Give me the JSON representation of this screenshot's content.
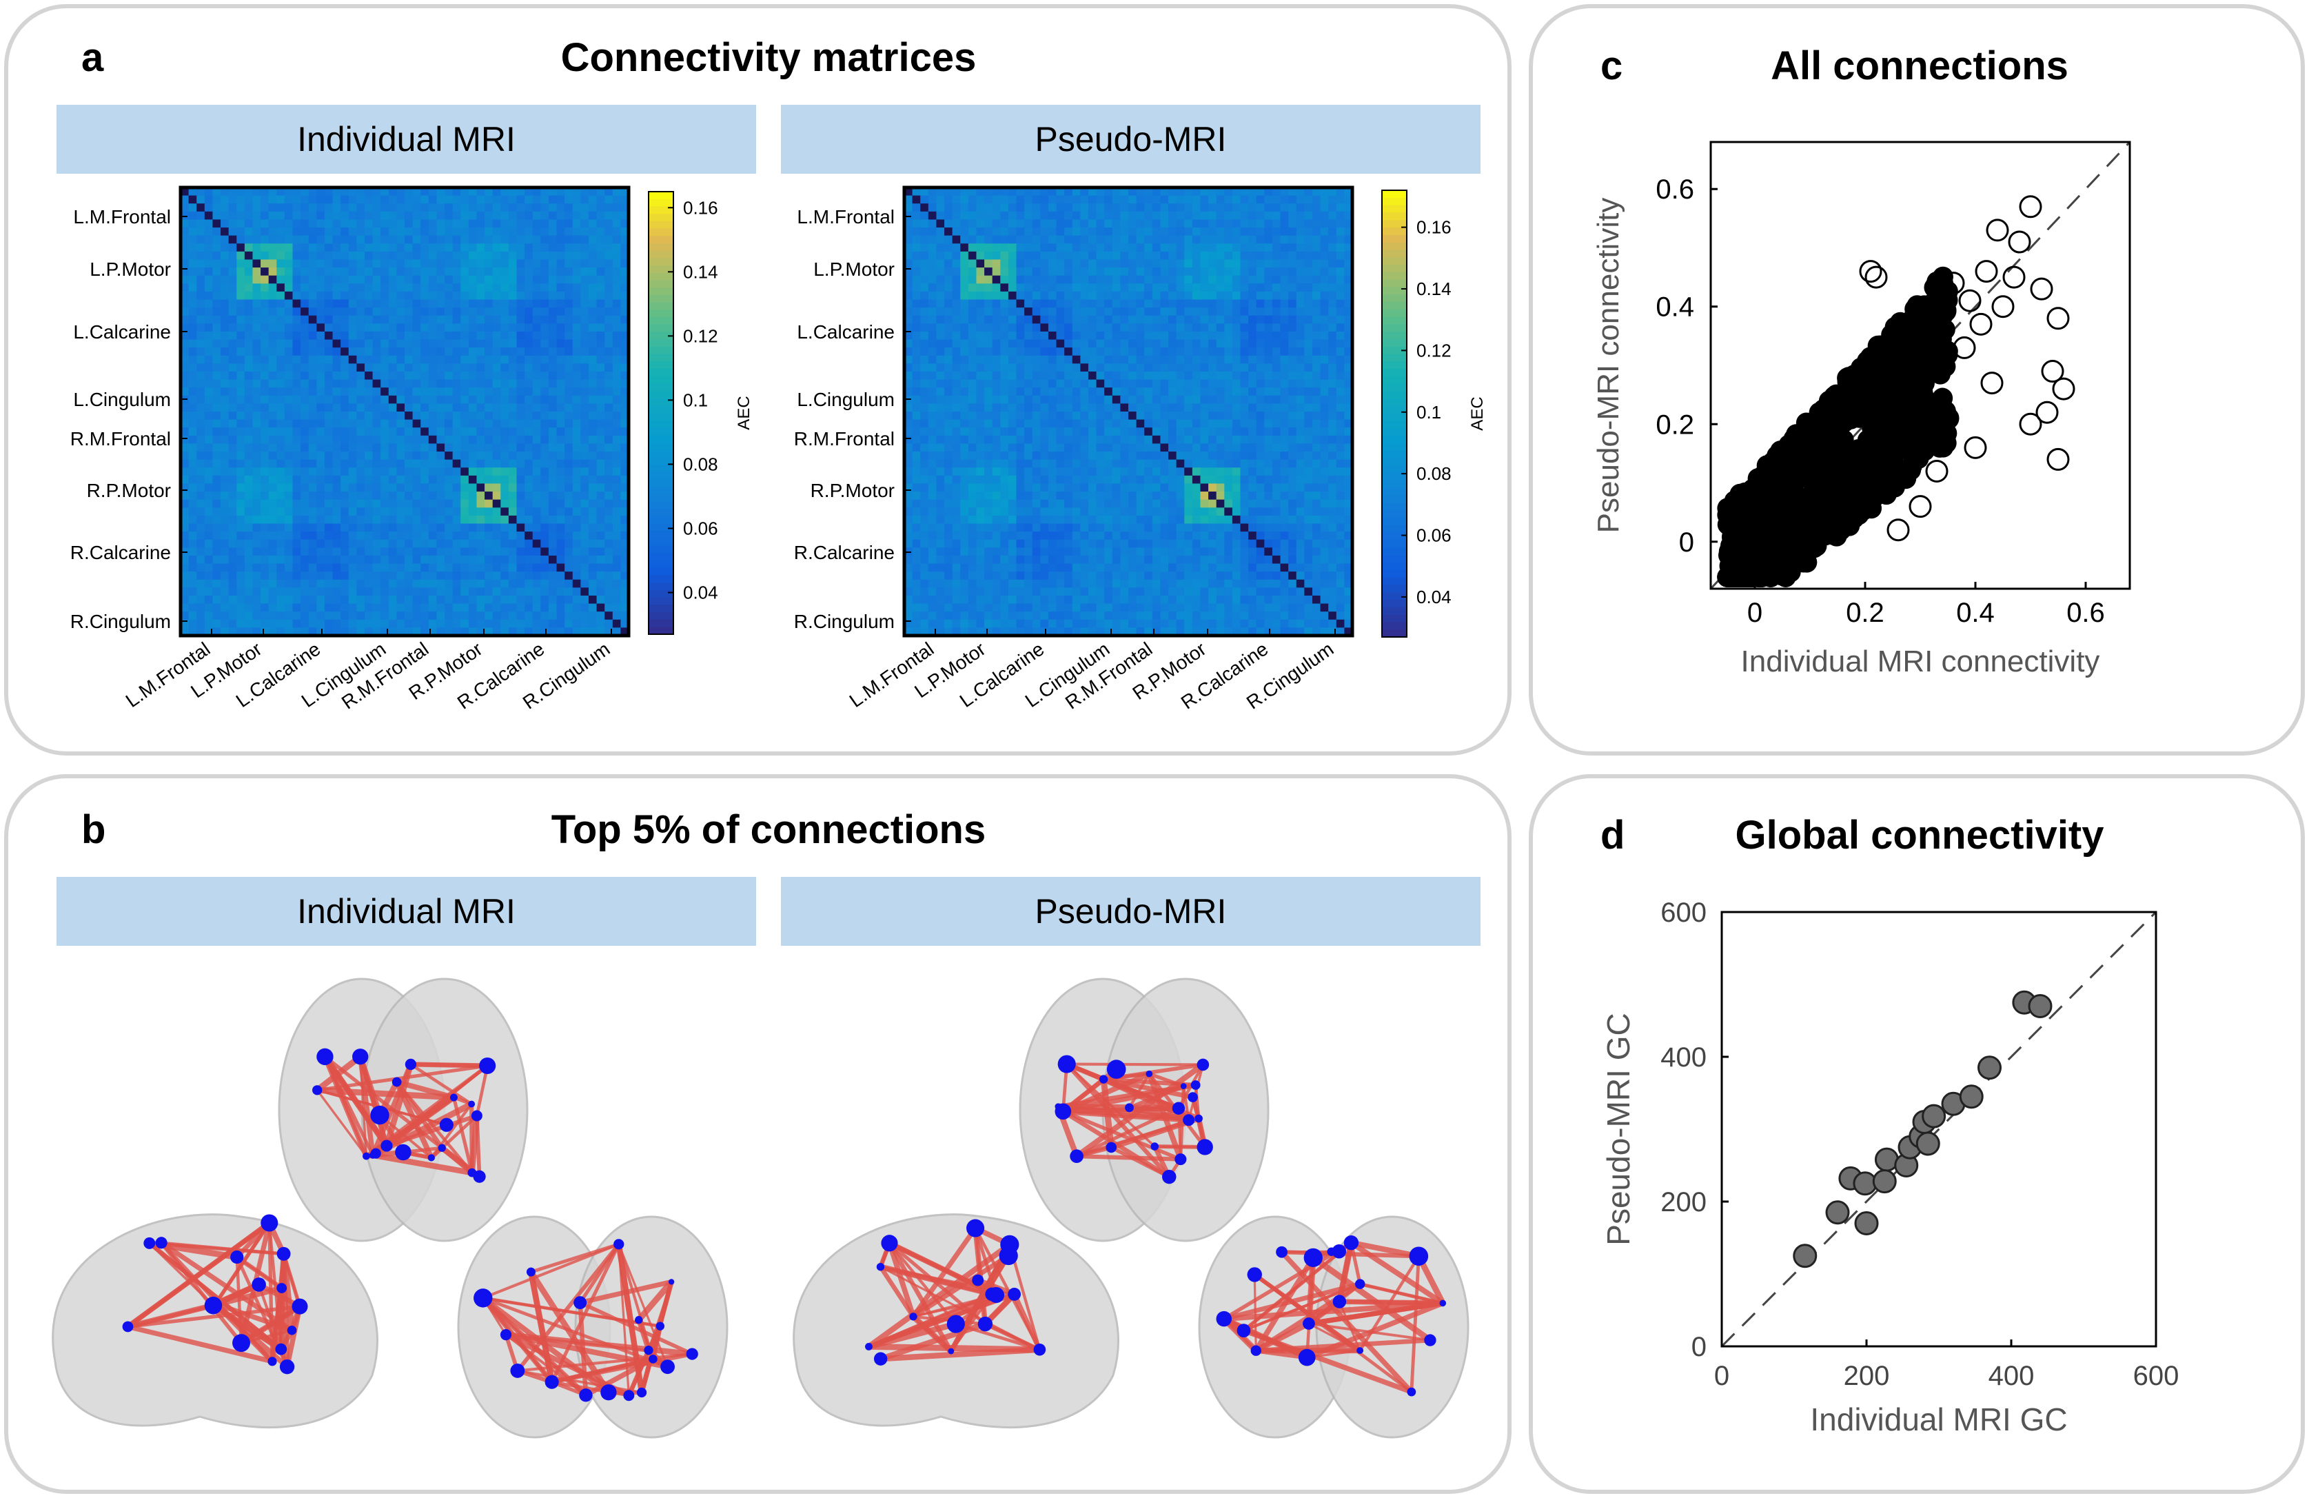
{
  "panels": {
    "a": {
      "letter": "a",
      "title": "Connectivity matrices"
    },
    "b": {
      "letter": "b",
      "title": "Top 5% of connections"
    },
    "c": {
      "letter": "c",
      "title": "All connections"
    },
    "d": {
      "letter": "d",
      "title": "Global connectivity"
    }
  },
  "banners": {
    "left": "Individual MRI",
    "right": "Pseudo-MRI"
  },
  "colors": {
    "panel_border": "#d4d4d4",
    "banner": "#bdd7ee",
    "node": "#1010ee",
    "edge": "#e0524a",
    "brain": "#d0d0d0",
    "marker_fill_d": "#6e6e6e"
  },
  "chart_data": [
    {
      "type": "heatmap",
      "title": "Individual MRI",
      "row_labels": [
        "L.M.Frontal",
        "L.P.Motor",
        "L.Calcarine",
        "L.Cingulum",
        "R.M.Frontal",
        "R.P.Motor",
        "R.Calcarine",
        "R.Cingulum"
      ],
      "col_labels": [
        "L.M.Frontal",
        "L.P.Motor",
        "L.Calcarine",
        "L.Cingulum",
        "R.M.Frontal",
        "R.P.Motor",
        "R.Calcarine",
        "R.Cingulum"
      ],
      "colorbar": {
        "label": "AEC",
        "ticks": [
          "0.04",
          "0.06",
          "0.08",
          "0.1",
          "0.12",
          "0.14",
          "0.16"
        ],
        "range": [
          0.027,
          0.165
        ]
      }
    },
    {
      "type": "heatmap",
      "title": "Pseudo-MRI",
      "row_labels": [
        "L.M.Frontal",
        "L.P.Motor",
        "L.Calcarine",
        "L.Cingulum",
        "R.M.Frontal",
        "R.P.Motor",
        "R.Calcarine",
        "R.Cingulum"
      ],
      "col_labels": [
        "L.M.Frontal",
        "L.P.Motor",
        "L.Calcarine",
        "L.Cingulum",
        "R.M.Frontal",
        "R.P.Motor",
        "R.Calcarine",
        "R.Cingulum"
      ],
      "colorbar": {
        "label": "AEC",
        "ticks": [
          "0.04",
          "0.06",
          "0.08",
          "0.1",
          "0.12",
          "0.14",
          "0.16"
        ],
        "range": [
          0.027,
          0.172
        ]
      }
    },
    {
      "type": "scatter",
      "title": "All connections",
      "xlabel": "Individual MRI connectivity",
      "ylabel": "Pseudo-MRI connectivity",
      "xlim": [
        -0.08,
        0.68
      ],
      "ylim": [
        -0.08,
        0.68
      ],
      "xticks": [
        "0",
        "0.2",
        "0.4",
        "0.6"
      ],
      "yticks": [
        "0",
        "0.2",
        "0.4",
        "0.6"
      ],
      "identity_line": true,
      "outliers": [
        [
          0.5,
          0.57
        ],
        [
          0.44,
          0.53
        ],
        [
          0.48,
          0.51
        ],
        [
          0.42,
          0.46
        ],
        [
          0.47,
          0.45
        ],
        [
          0.52,
          0.43
        ],
        [
          0.55,
          0.38
        ],
        [
          0.54,
          0.29
        ],
        [
          0.56,
          0.26
        ],
        [
          0.53,
          0.22
        ],
        [
          0.55,
          0.14
        ],
        [
          0.5,
          0.2
        ],
        [
          0.41,
          0.37
        ],
        [
          0.45,
          0.4
        ],
        [
          0.39,
          0.41
        ],
        [
          0.38,
          0.33
        ],
        [
          0.43,
          0.27
        ],
        [
          0.36,
          0.44
        ],
        [
          0.22,
          0.45
        ],
        [
          0.21,
          0.46
        ],
        [
          0.33,
          0.12
        ],
        [
          0.3,
          0.06
        ],
        [
          0.26,
          0.02
        ],
        [
          0.4,
          0.16
        ],
        [
          0.35,
          0.21
        ]
      ]
    },
    {
      "type": "scatter",
      "title": "Global connectivity",
      "xlabel": "Individual MRI GC",
      "ylabel": "Pseudo-MRI GC",
      "xlim": [
        0,
        600
      ],
      "ylim": [
        0,
        600
      ],
      "xticks": [
        "0",
        "200",
        "400",
        "600"
      ],
      "yticks": [
        "0",
        "200",
        "400",
        "600"
      ],
      "identity_line": true,
      "points": [
        [
          115,
          125
        ],
        [
          160,
          185
        ],
        [
          178,
          232
        ],
        [
          198,
          225
        ],
        [
          200,
          170
        ],
        [
          228,
          258
        ],
        [
          225,
          228
        ],
        [
          255,
          250
        ],
        [
          260,
          275
        ],
        [
          275,
          290
        ],
        [
          280,
          310
        ],
        [
          293,
          318
        ],
        [
          285,
          280
        ],
        [
          320,
          335
        ],
        [
          345,
          345
        ],
        [
          370,
          385
        ],
        [
          418,
          475
        ],
        [
          440,
          470
        ]
      ]
    }
  ]
}
